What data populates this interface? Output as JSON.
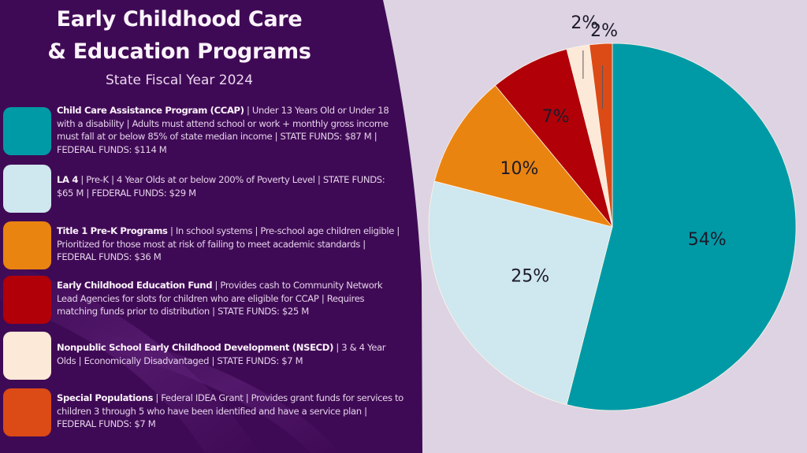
{
  "header": {
    "title_line1": "Early Childhood Care",
    "title_line2": "& Education Programs",
    "subtitle": "State Fiscal Year 2024"
  },
  "legend": [
    {
      "name": "Child Care Assistance Program (CCAP)",
      "details": " | Under 13 Years Old or Under 18 with a disability | Adults must attend school or work + monthly gross income must fall at or below 85% of state median income | ",
      "funds": "STATE FUNDS: $87 M  | FEDERAL FUNDS: $114 M",
      "color": "#009aa6"
    },
    {
      "name": "LA 4",
      "details": " | Pre-K  | 4 Year Olds at or below 200% of Poverty Level  | ",
      "funds": "STATE FUNDS: $65 M | FEDERAL FUNDS: $29 M",
      "color": "#cfe7ee"
    },
    {
      "name": "Title 1 Pre-K Programs",
      "details": " | In school systems | Pre-school age children eligible | Prioritized for those most at risk of failing to meet academic standards | ",
      "funds": "FEDERAL FUNDS: $36 M",
      "color": "#ea8410"
    },
    {
      "name": "Early Childhood Education Fund",
      "details": " | Provides cash to Community Network Lead Agencies for slots for children who are eligible for CCAP | Requires matching funds prior to distribution | ",
      "funds": "STATE FUNDS: $25 M",
      "color": "#b10008"
    },
    {
      "name": "Nonpublic School Early Childhood Development (NSECD)",
      "details": " | 3 & 4 Year Olds | Economically Disadvantaged | ",
      "funds": "STATE FUNDS: $7 M",
      "color": "#fde9d8"
    },
    {
      "name": "Special Populations",
      "details": " | Federal IDEA Grant | Provides grant funds for services to children 3 through 5 who have been identified and have a service plan | ",
      "funds": "FEDERAL FUNDS: $7 M",
      "color": "#dc4a16"
    }
  ],
  "chart_data": {
    "type": "pie",
    "title": "Early Childhood Care & Education Programs — State Fiscal Year 2024",
    "start_angle": "12 o'clock",
    "direction": "clockwise",
    "slices": [
      {
        "label": "Child Care Assistance Program (CCAP)",
        "value": 54,
        "display": "54%",
        "color": "#009aa6"
      },
      {
        "label": "LA 4",
        "value": 25,
        "display": "25%",
        "color": "#cfe7ee"
      },
      {
        "label": "Title 1 Pre-K Programs",
        "value": 10,
        "display": "10%",
        "color": "#ea8410"
      },
      {
        "label": "Early Childhood Education Fund",
        "value": 7,
        "display": "7%",
        "color": "#b10008"
      },
      {
        "label": "Nonpublic School Early Childhood Development (NSECD)",
        "value": 2,
        "display": "2%",
        "color": "#fde9d8"
      },
      {
        "label": "Special Populations",
        "value": 2,
        "display": "2%",
        "color": "#dc4a16"
      }
    ],
    "colors": {
      "panel": "#3f0a55",
      "background": "#ddd3e3"
    }
  }
}
